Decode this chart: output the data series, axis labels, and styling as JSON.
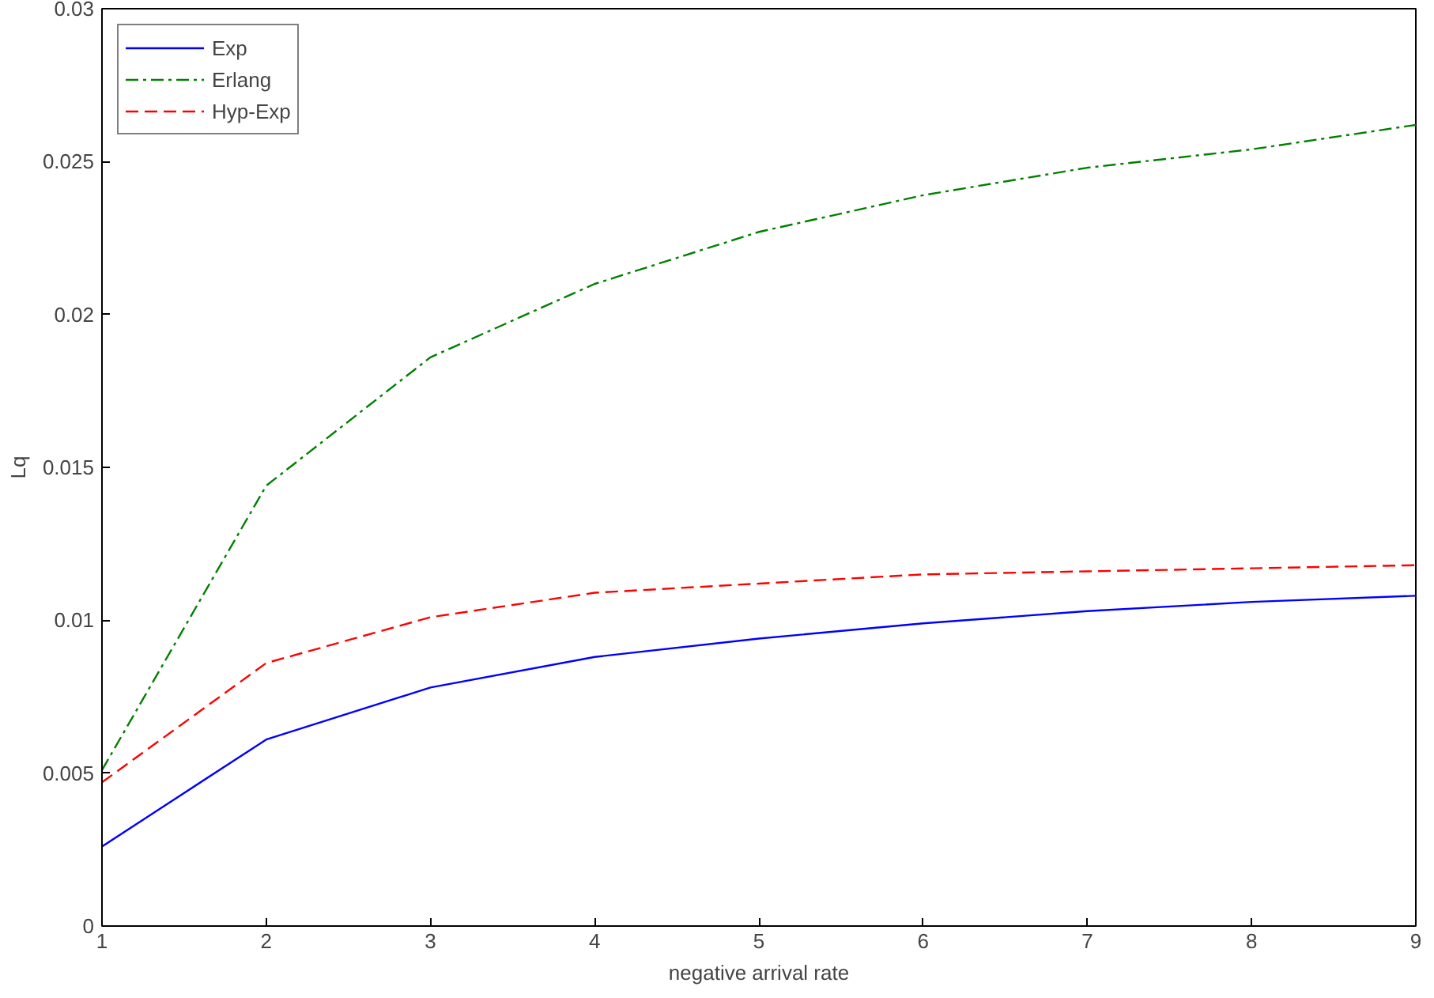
{
  "chart_data": {
    "type": "line",
    "xlabel": "negative arrival rate",
    "ylabel": "Lq",
    "x": [
      1,
      2,
      3,
      4,
      5,
      6,
      7,
      8,
      9
    ],
    "series": [
      {
        "name": "Exp",
        "color": "#0000ff",
        "line_style": "solid",
        "values": [
          0.0026,
          0.0061,
          0.0078,
          0.0088,
          0.0094,
          0.0099,
          0.0103,
          0.0106,
          0.0108
        ]
      },
      {
        "name": "Erlang",
        "color": "#008000",
        "line_style": "dashdot",
        "values": [
          0.0051,
          0.0144,
          0.0186,
          0.021,
          0.0227,
          0.0239,
          0.0248,
          0.0254,
          0.0262
        ]
      },
      {
        "name": "Hyp-Exp",
        "color": "#ff0000",
        "line_style": "dashed",
        "values": [
          0.0047,
          0.0086,
          0.0101,
          0.0109,
          0.0112,
          0.0115,
          0.0116,
          0.0117,
          0.0118
        ]
      }
    ],
    "xlim": [
      1,
      9
    ],
    "ylim": [
      0,
      0.03
    ],
    "xticks": [
      1,
      2,
      3,
      4,
      5,
      6,
      7,
      8,
      9
    ],
    "yticks": [
      0,
      0.005,
      0.01,
      0.015,
      0.02,
      0.025,
      0.03
    ],
    "grid": false,
    "legend": "top left",
    "marker": "none"
  }
}
